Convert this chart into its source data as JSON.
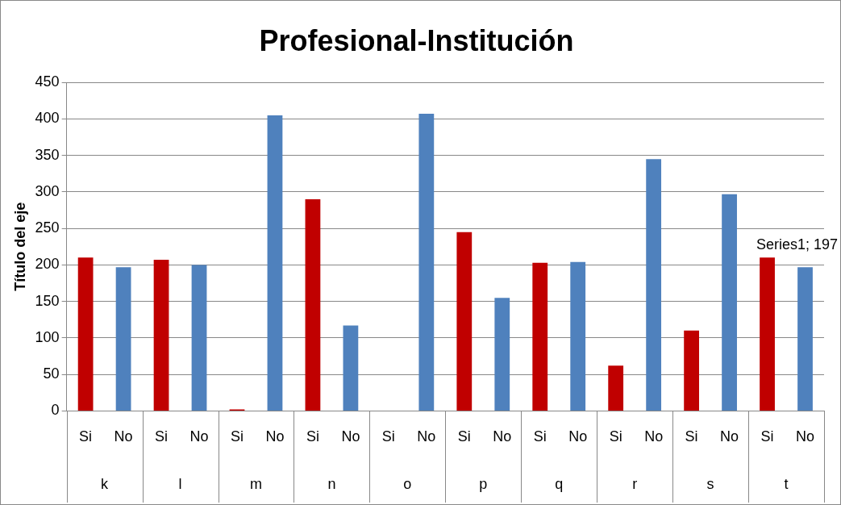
{
  "chart_data": {
    "type": "bar",
    "title": "Profesional-Institución",
    "ylabel": "Título del eje",
    "categories": [
      "Si",
      "No",
      "Si",
      "No",
      "Si",
      "No",
      "Si",
      "No",
      "Si",
      "No",
      "Si",
      "No",
      "Si",
      "No",
      "Si",
      "No",
      "Si",
      "No",
      "Si",
      "No"
    ],
    "values": [
      210,
      197,
      207,
      200,
      2,
      405,
      290,
      117,
      0,
      407,
      245,
      155,
      203,
      204,
      62,
      345,
      110,
      297,
      210,
      197
    ],
    "colors": [
      "#c00000",
      "#4f81bd",
      "#c00000",
      "#4f81bd",
      "#c00000",
      "#4f81bd",
      "#c00000",
      "#4f81bd",
      "#c00000",
      "#4f81bd",
      "#c00000",
      "#4f81bd",
      "#c00000",
      "#4f81bd",
      "#c00000",
      "#4f81bd",
      "#c00000",
      "#4f81bd",
      "#c00000",
      "#4f81bd"
    ],
    "value_labels": [
      null,
      null,
      null,
      null,
      null,
      null,
      null,
      null,
      null,
      null,
      null,
      null,
      null,
      null,
      null,
      null,
      null,
      null,
      null,
      "Series1; 197"
    ],
    "annotations": [
      "k",
      "l",
      "m",
      "n",
      "o",
      "p",
      "q",
      "r",
      "s",
      "t"
    ],
    "ylim": [
      0,
      450
    ],
    "yticks": [
      0,
      50,
      100,
      150,
      200,
      250,
      300,
      350,
      400,
      450
    ],
    "grid": "y",
    "legend": false
  }
}
